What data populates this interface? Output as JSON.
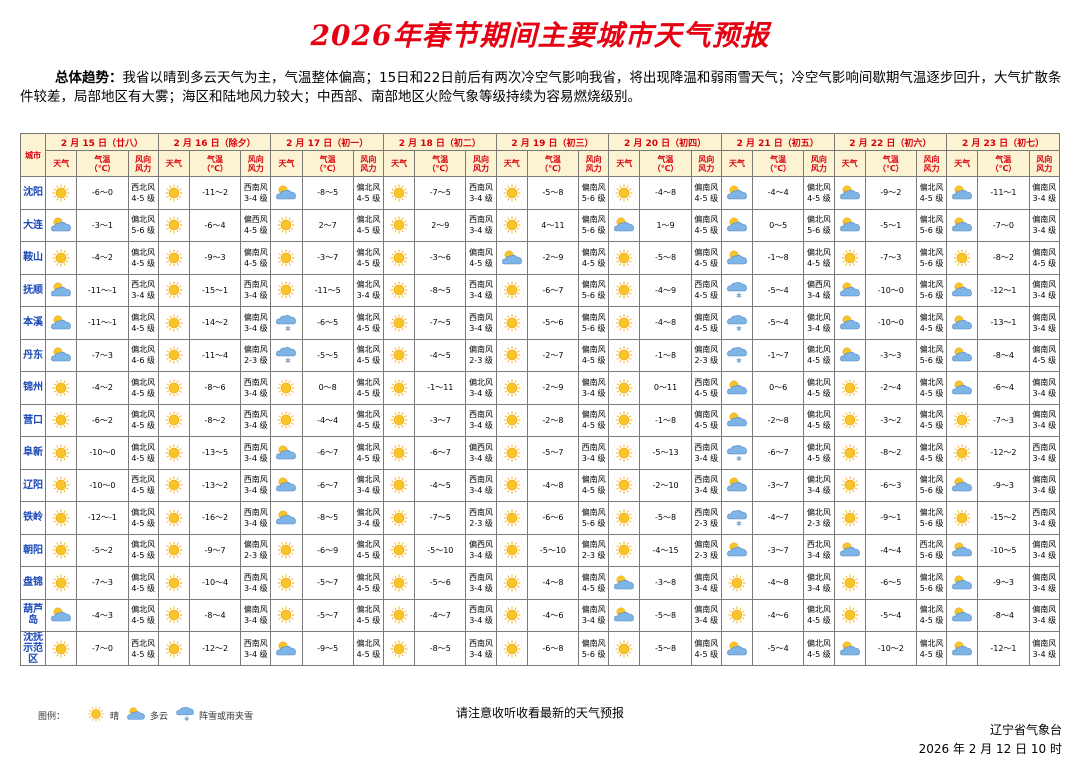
{
  "title": "2026年春节期间主要城市天气预报",
  "summary": {
    "lead": "总体趋势：",
    "text": "我省以晴到多云天气为主，气温整体偏高；15日和22日前后有两次冷空气影响我省，将出现降温和弱雨雪天气；冷空气影响间歇期气温逐步回升，大气扩散条件较差，局部地区有大雾；海区和陆地风力较大；中西部、南部地区火险气象等级持续为容易燃烧级别。"
  },
  "table": {
    "city_header": "城市",
    "sub_headers": {
      "weather": "天气",
      "temp_line1": "气温",
      "temp_line2": "（℃）",
      "wind_line1": "风向",
      "wind_line2": "风力"
    },
    "days": [
      {
        "date": "2 月 15 日（廿八）"
      },
      {
        "date": "2 月 16 日（除夕）"
      },
      {
        "date": "2 月 17 日（初一）"
      },
      {
        "date": "2 月 18 日（初二）"
      },
      {
        "date": "2 月 19 日（初三）"
      },
      {
        "date": "2 月 20 日（初四）"
      },
      {
        "date": "2 月 21 日（初五）"
      },
      {
        "date": "2 月 22 日（初六）"
      },
      {
        "date": "2 月 23 日（初七）"
      }
    ],
    "rows": [
      {
        "city": "沈阳",
        "cells": [
          {
            "w": "sunny",
            "t": "-6～0",
            "d": "西北风",
            "f": "4-5 级"
          },
          {
            "w": "sunny",
            "t": "-11～2",
            "d": "西南风",
            "f": "3-4 级"
          },
          {
            "w": "cloudy",
            "t": "-8～5",
            "d": "偏北风",
            "f": "4-5 级"
          },
          {
            "w": "sunny",
            "t": "-7～5",
            "d": "西南风",
            "f": "3-4 级"
          },
          {
            "w": "sunny",
            "t": "-5～8",
            "d": "偏南风",
            "f": "5-6 级"
          },
          {
            "w": "sunny",
            "t": "-4～8",
            "d": "偏南风",
            "f": "4-5 级"
          },
          {
            "w": "cloudy",
            "t": "-4～4",
            "d": "偏北风",
            "f": "4-5 级"
          },
          {
            "w": "cloudy",
            "t": "-9～2",
            "d": "偏北风",
            "f": "4-5 级"
          },
          {
            "w": "cloudy",
            "t": "-11～1",
            "d": "偏南风",
            "f": "3-4 级"
          }
        ]
      },
      {
        "city": "大连",
        "cells": [
          {
            "w": "cloudy",
            "t": "-3～1",
            "d": "偏北风",
            "f": "5-6 级"
          },
          {
            "w": "sunny",
            "t": "-6～4",
            "d": "偏西风",
            "f": "4-5 级"
          },
          {
            "w": "sunny",
            "t": "2～7",
            "d": "偏北风",
            "f": "4-5 级"
          },
          {
            "w": "sunny",
            "t": "2～9",
            "d": "西南风",
            "f": "3-4 级"
          },
          {
            "w": "sunny",
            "t": "4～11",
            "d": "偏南风",
            "f": "5-6 级"
          },
          {
            "w": "cloudy",
            "t": "1～9",
            "d": "偏南风",
            "f": "4-5 级"
          },
          {
            "w": "cloudy",
            "t": "0～5",
            "d": "偏北风",
            "f": "5-6 级"
          },
          {
            "w": "cloudy",
            "t": "-5～1",
            "d": "偏北风",
            "f": "5-6 级"
          },
          {
            "w": "cloudy",
            "t": "-7～0",
            "d": "偏南风",
            "f": "3-4 级"
          }
        ]
      },
      {
        "city": "鞍山",
        "cells": [
          {
            "w": "sunny",
            "t": "-4～2",
            "d": "偏北风",
            "f": "4-5 级"
          },
          {
            "w": "sunny",
            "t": "-9～3",
            "d": "偏南风",
            "f": "4-5 级"
          },
          {
            "w": "sunny",
            "t": "-3～7",
            "d": "偏北风",
            "f": "4-5 级"
          },
          {
            "w": "sunny",
            "t": "-3～6",
            "d": "偏南风",
            "f": "4-5 级"
          },
          {
            "w": "cloudy",
            "t": "-2～9",
            "d": "偏南风",
            "f": "4-5 级"
          },
          {
            "w": "sunny",
            "t": "-5～8",
            "d": "偏南风",
            "f": "4-5 级"
          },
          {
            "w": "cloudy",
            "t": "-1～8",
            "d": "偏北风",
            "f": "4-5 级"
          },
          {
            "w": "sunny",
            "t": "-7～3",
            "d": "偏北风",
            "f": "5-6 级"
          },
          {
            "w": "sunny",
            "t": "-8～2",
            "d": "偏南风",
            "f": "4-5 级"
          }
        ]
      },
      {
        "city": "抚顺",
        "cells": [
          {
            "w": "cloudy",
            "t": "-11～-1",
            "d": "西北风",
            "f": "3-4 级"
          },
          {
            "w": "sunny",
            "t": "-15～1",
            "d": "西南风",
            "f": "3-4 级"
          },
          {
            "w": "sunny",
            "t": "-11～5",
            "d": "偏北风",
            "f": "3-4 级"
          },
          {
            "w": "sunny",
            "t": "-8～5",
            "d": "西南风",
            "f": "3-4 级"
          },
          {
            "w": "sunny",
            "t": "-6～7",
            "d": "偏南风",
            "f": "5-6 级"
          },
          {
            "w": "sunny",
            "t": "-4～9",
            "d": "西南风",
            "f": "4-5 级"
          },
          {
            "w": "snow",
            "t": "-5～4",
            "d": "偏西风",
            "f": "3-4 级"
          },
          {
            "w": "cloudy",
            "t": "-10～0",
            "d": "偏北风",
            "f": "5-6 级"
          },
          {
            "w": "cloudy",
            "t": "-12～1",
            "d": "偏南风",
            "f": "3-4 级"
          }
        ]
      },
      {
        "city": "本溪",
        "cells": [
          {
            "w": "cloudy",
            "t": "-11～-1",
            "d": "偏北风",
            "f": "4-5 级"
          },
          {
            "w": "sunny",
            "t": "-14～2",
            "d": "偏南风",
            "f": "3-4 级"
          },
          {
            "w": "snow",
            "t": "-6～5",
            "d": "偏北风",
            "f": "4-5 级"
          },
          {
            "w": "sunny",
            "t": "-7～5",
            "d": "西南风",
            "f": "3-4 级"
          },
          {
            "w": "sunny",
            "t": "-5～6",
            "d": "偏南风",
            "f": "5-6 级"
          },
          {
            "w": "sunny",
            "t": "-4～8",
            "d": "偏南风",
            "f": "4-5 级"
          },
          {
            "w": "snow",
            "t": "-5～4",
            "d": "偏北风",
            "f": "3-4 级"
          },
          {
            "w": "cloudy",
            "t": "-10～0",
            "d": "偏北风",
            "f": "4-5 级"
          },
          {
            "w": "cloudy",
            "t": "-13～1",
            "d": "偏南风",
            "f": "3-4 级"
          }
        ]
      },
      {
        "city": "丹东",
        "cells": [
          {
            "w": "cloudy",
            "t": "-7～3",
            "d": "偏北风",
            "f": "4-6 级"
          },
          {
            "w": "sunny",
            "t": "-11～4",
            "d": "偏南风",
            "f": "2-3 级"
          },
          {
            "w": "snow",
            "t": "-5～5",
            "d": "偏北风",
            "f": "4-5 级"
          },
          {
            "w": "sunny",
            "t": "-4～5",
            "d": "偏南风",
            "f": "2-3 级"
          },
          {
            "w": "sunny",
            "t": "-2～7",
            "d": "偏南风",
            "f": "4-5 级"
          },
          {
            "w": "sunny",
            "t": "-1～8",
            "d": "偏南风",
            "f": "2-3 级"
          },
          {
            "w": "snow",
            "t": "-1～7",
            "d": "偏北风",
            "f": "4-5 级"
          },
          {
            "w": "cloudy",
            "t": "-3～3",
            "d": "偏北风",
            "f": "5-6 级"
          },
          {
            "w": "cloudy",
            "t": "-8～4",
            "d": "偏南风",
            "f": "4-5 级"
          }
        ]
      },
      {
        "city": "锦州",
        "cells": [
          {
            "w": "sunny",
            "t": "-4～2",
            "d": "偏北风",
            "f": "4-5 级"
          },
          {
            "w": "sunny",
            "t": "-8～6",
            "d": "西南风",
            "f": "3-4 级"
          },
          {
            "w": "sunny",
            "t": "0～8",
            "d": "偏北风",
            "f": "4-5 级"
          },
          {
            "w": "sunny",
            "t": "-1～11",
            "d": "偏北风",
            "f": "3-4 级"
          },
          {
            "w": "sunny",
            "t": "-2～9",
            "d": "偏南风",
            "f": "3-4 级"
          },
          {
            "w": "sunny",
            "t": "0～11",
            "d": "西南风",
            "f": "4-5 级"
          },
          {
            "w": "cloudy",
            "t": "0～6",
            "d": "偏北风",
            "f": "4-5 级"
          },
          {
            "w": "sunny",
            "t": "-2～4",
            "d": "偏北风",
            "f": "4-5 级"
          },
          {
            "w": "cloudy",
            "t": "-6～4",
            "d": "偏南风",
            "f": "3-4 级"
          }
        ]
      },
      {
        "city": "营口",
        "cells": [
          {
            "w": "sunny",
            "t": "-6～2",
            "d": "偏北风",
            "f": "4-5 级"
          },
          {
            "w": "sunny",
            "t": "-8～2",
            "d": "西南风",
            "f": "3-4 级"
          },
          {
            "w": "sunny",
            "t": "-4～4",
            "d": "偏北风",
            "f": "4-5 级"
          },
          {
            "w": "sunny",
            "t": "-3～7",
            "d": "西南风",
            "f": "3-4 级"
          },
          {
            "w": "sunny",
            "t": "-2～8",
            "d": "偏南风",
            "f": "4-5 级"
          },
          {
            "w": "sunny",
            "t": "-1～8",
            "d": "偏南风",
            "f": "4-5 级"
          },
          {
            "w": "cloudy",
            "t": "-2～8",
            "d": "偏北风",
            "f": "4-5 级"
          },
          {
            "w": "sunny",
            "t": "-3～2",
            "d": "偏北风",
            "f": "4-5 级"
          },
          {
            "w": "sunny",
            "t": "-7～3",
            "d": "偏南风",
            "f": "3-4 级"
          }
        ]
      },
      {
        "city": "阜新",
        "cells": [
          {
            "w": "sunny",
            "t": "-10～0",
            "d": "偏北风",
            "f": "4-5 级"
          },
          {
            "w": "sunny",
            "t": "-13～5",
            "d": "西南风",
            "f": "3-4 级"
          },
          {
            "w": "cloudy",
            "t": "-6～7",
            "d": "偏北风",
            "f": "4-5 级"
          },
          {
            "w": "sunny",
            "t": "-6～7",
            "d": "偏西风",
            "f": "3-4 级"
          },
          {
            "w": "sunny",
            "t": "-5～7",
            "d": "西南风",
            "f": "3-4 级"
          },
          {
            "w": "sunny",
            "t": "-5～13",
            "d": "西南风",
            "f": "3-4 级"
          },
          {
            "w": "snow",
            "t": "-6～7",
            "d": "偏北风",
            "f": "4-5 级"
          },
          {
            "w": "sunny",
            "t": "-8～2",
            "d": "偏北风",
            "f": "4-5 级"
          },
          {
            "w": "sunny",
            "t": "-12～2",
            "d": "西南风",
            "f": "3-4 级"
          }
        ]
      },
      {
        "city": "辽阳",
        "cells": [
          {
            "w": "sunny",
            "t": "-10～0",
            "d": "西北风",
            "f": "4-5 级"
          },
          {
            "w": "sunny",
            "t": "-13～2",
            "d": "西南风",
            "f": "3-4 级"
          },
          {
            "w": "cloudy",
            "t": "-6～7",
            "d": "偏北风",
            "f": "3-4 级"
          },
          {
            "w": "sunny",
            "t": "-4～5",
            "d": "西南风",
            "f": "3-4 级"
          },
          {
            "w": "sunny",
            "t": "-4～8",
            "d": "偏南风",
            "f": "4-5 级"
          },
          {
            "w": "sunny",
            "t": "-2～10",
            "d": "西南风",
            "f": "3-4 级"
          },
          {
            "w": "cloudy",
            "t": "-3～7",
            "d": "偏北风",
            "f": "3-4 级"
          },
          {
            "w": "sunny",
            "t": "-6～3",
            "d": "偏北风",
            "f": "5-6 级"
          },
          {
            "w": "cloudy",
            "t": "-9～3",
            "d": "偏南风",
            "f": "3-4 级"
          }
        ]
      },
      {
        "city": "铁岭",
        "cells": [
          {
            "w": "sunny",
            "t": "-12～-1",
            "d": "偏北风",
            "f": "4-5 级"
          },
          {
            "w": "sunny",
            "t": "-16～2",
            "d": "西南风",
            "f": "3-4 级"
          },
          {
            "w": "cloudy",
            "t": "-8～5",
            "d": "偏北风",
            "f": "3-4 级"
          },
          {
            "w": "sunny",
            "t": "-7～5",
            "d": "西南风",
            "f": "2-3 级"
          },
          {
            "w": "sunny",
            "t": "-6～6",
            "d": "偏南风",
            "f": "5-6 级"
          },
          {
            "w": "sunny",
            "t": "-5～8",
            "d": "西南风",
            "f": "2-3 级"
          },
          {
            "w": "snow",
            "t": "-4～7",
            "d": "偏北风",
            "f": "2-3 级"
          },
          {
            "w": "sunny",
            "t": "-9～1",
            "d": "偏北风",
            "f": "5-6 级"
          },
          {
            "w": "sunny",
            "t": "-15～2",
            "d": "西南风",
            "f": "3-4 级"
          }
        ]
      },
      {
        "city": "朝阳",
        "cells": [
          {
            "w": "sunny",
            "t": "-5～2",
            "d": "偏北风",
            "f": "4-5 级"
          },
          {
            "w": "sunny",
            "t": "-9～7",
            "d": "偏南风",
            "f": "2-3 级"
          },
          {
            "w": "sunny",
            "t": "-6～9",
            "d": "偏北风",
            "f": "4-5 级"
          },
          {
            "w": "sunny",
            "t": "-5～10",
            "d": "偏西风",
            "f": "3-4 级"
          },
          {
            "w": "sunny",
            "t": "-5～10",
            "d": "偏南风",
            "f": "2-3 级"
          },
          {
            "w": "sunny",
            "t": "-4～15",
            "d": "偏南风",
            "f": "2-3 级"
          },
          {
            "w": "cloudy",
            "t": "-3～7",
            "d": "西北风",
            "f": "3-4 级"
          },
          {
            "w": "cloudy",
            "t": "-4～4",
            "d": "西北风",
            "f": "5-6 级"
          },
          {
            "w": "cloudy",
            "t": "-10～5",
            "d": "偏南风",
            "f": "3-4 级"
          }
        ]
      },
      {
        "city": "盘锦",
        "cells": [
          {
            "w": "sunny",
            "t": "-7～3",
            "d": "偏北风",
            "f": "4-5 级"
          },
          {
            "w": "sunny",
            "t": "-10～4",
            "d": "西南风",
            "f": "3-4 级"
          },
          {
            "w": "sunny",
            "t": "-5～7",
            "d": "偏北风",
            "f": "4-5 级"
          },
          {
            "w": "sunny",
            "t": "-5～6",
            "d": "西南风",
            "f": "3-4 级"
          },
          {
            "w": "sunny",
            "t": "-4～8",
            "d": "偏南风",
            "f": "4-5 级"
          },
          {
            "w": "cloudy",
            "t": "-3～8",
            "d": "偏南风",
            "f": "3-4 级"
          },
          {
            "w": "sunny",
            "t": "-4～8",
            "d": "偏北风",
            "f": "3-4 级"
          },
          {
            "w": "sunny",
            "t": "-6～5",
            "d": "偏北风",
            "f": "5-6 级"
          },
          {
            "w": "cloudy",
            "t": "-9～3",
            "d": "偏南风",
            "f": "3-4 级"
          }
        ]
      },
      {
        "city": "葫芦岛",
        "cells": [
          {
            "w": "cloudy",
            "t": "-4～3",
            "d": "偏北风",
            "f": "4-5 级"
          },
          {
            "w": "sunny",
            "t": "-8～4",
            "d": "偏南风",
            "f": "3-4 级"
          },
          {
            "w": "sunny",
            "t": "-5～7",
            "d": "偏北风",
            "f": "4-5 级"
          },
          {
            "w": "sunny",
            "t": "-4～7",
            "d": "西南风",
            "f": "3-4 级"
          },
          {
            "w": "sunny",
            "t": "-4～6",
            "d": "偏南风",
            "f": "3-4 级"
          },
          {
            "w": "cloudy",
            "t": "-5～8",
            "d": "偏南风",
            "f": "3-4 级"
          },
          {
            "w": "sunny",
            "t": "-4～6",
            "d": "偏北风",
            "f": "4-5 级"
          },
          {
            "w": "sunny",
            "t": "-5～4",
            "d": "偏北风",
            "f": "4-5 级"
          },
          {
            "w": "cloudy",
            "t": "-8～4",
            "d": "偏南风",
            "f": "3-4 级"
          }
        ]
      },
      {
        "city": "沈抚示范区",
        "cells": [
          {
            "w": "sunny",
            "t": "-7～0",
            "d": "西北风",
            "f": "4-5 级"
          },
          {
            "w": "sunny",
            "t": "-12～2",
            "d": "西南风",
            "f": "3-4 级"
          },
          {
            "w": "cloudy",
            "t": "-9～5",
            "d": "偏北风",
            "f": "4-5 级"
          },
          {
            "w": "sunny",
            "t": "-8～5",
            "d": "西南风",
            "f": "3-4 级"
          },
          {
            "w": "sunny",
            "t": "-6～8",
            "d": "偏南风",
            "f": "5-6 级"
          },
          {
            "w": "sunny",
            "t": "-5～8",
            "d": "偏南风",
            "f": "4-5 级"
          },
          {
            "w": "cloudy",
            "t": "-5～4",
            "d": "偏北风",
            "f": "4-5 级"
          },
          {
            "w": "cloudy",
            "t": "-10～2",
            "d": "偏北风",
            "f": "4-5 级"
          },
          {
            "w": "cloudy",
            "t": "-12～1",
            "d": "偏南风",
            "f": "3-4 级"
          }
        ]
      }
    ]
  },
  "legend": {
    "label": "图例：",
    "items": [
      {
        "icon": "sunny",
        "text": "晴"
      },
      {
        "icon": "cloudy",
        "text": "多云"
      },
      {
        "icon": "snow",
        "text": "阵雪或雨夹雪"
      }
    ]
  },
  "footer": {
    "note": "请注意收听收看最新的天气预报",
    "agency": "辽宁省气象台",
    "issued": "2026 年 2 月 12 日 10 时"
  },
  "colors": {
    "title": "#e60012",
    "header_text": "#d8000d",
    "header_bg": "#fcf3d2",
    "city_text": "#1b49b8"
  }
}
